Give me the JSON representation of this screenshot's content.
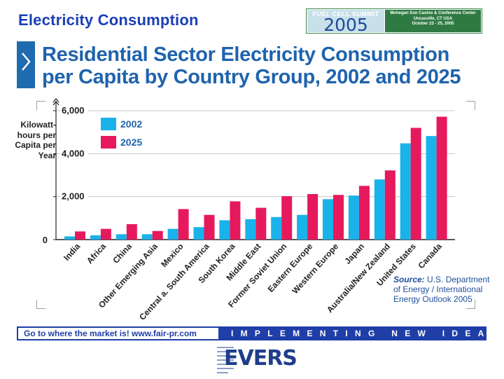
{
  "slide_title": "Electricity Consumption",
  "summit": {
    "name": "FUEL CELL SUMMIT",
    "year": "2005",
    "venue_line1": "Mohegan Sun Casino & Conference Center",
    "venue_line2": "Uncasville, CT USA",
    "dates": "October 23 - 25, 2005"
  },
  "heading": {
    "line1": "Residential Sector Electricity Consumption",
    "line2": "per Capita by Country Group, 2002 and 2025"
  },
  "source": {
    "label": "Source:",
    "text": "U.S. Department of Energy / International Energy Outlook 2005"
  },
  "footer": {
    "left_text": "Go to where the market is!   www.fair-pr.com",
    "right_text": "IMPLEMENTING NEW IDEAS"
  },
  "logo": {
    "text": "EVERS"
  },
  "colors": {
    "series_2002": "#1ab2ea",
    "series_2025": "#e6195c",
    "axis": "#222222",
    "gridline": "#c8c8c8"
  },
  "chart_data": {
    "type": "bar",
    "title": "Residential Sector Electricity Consumption per Capita by Country Group, 2002 and 2025",
    "ylabel": "Kilowatt-hours per Capita per Year",
    "xlabel": "",
    "ylim": [
      0,
      6000
    ],
    "yticks": [
      0,
      2000,
      4000,
      6000
    ],
    "ytick_labels": [
      "0",
      "2,000",
      "4,000",
      "6,000"
    ],
    "grid": true,
    "legend_position": "top-left",
    "categories": [
      "India",
      "Africa",
      "China",
      "Other Emerging Asia",
      "Mexico",
      "Central a. South America",
      "South Korea",
      "Middle East",
      "Former Soviet Union",
      "Eastern Europe",
      "Western Europe",
      "Japan",
      "Australia/New Zealand",
      "United States",
      "Canada"
    ],
    "series": [
      {
        "name": "2002",
        "values": [
          150,
          200,
          250,
          250,
          500,
          580,
          900,
          950,
          1050,
          1150,
          1880,
          2050,
          2800,
          4480,
          4820
        ]
      },
      {
        "name": "2025",
        "values": [
          380,
          500,
          720,
          400,
          1420,
          1150,
          1780,
          1480,
          2020,
          2120,
          2080,
          2500,
          3220,
          5200,
          5720
        ]
      }
    ]
  }
}
